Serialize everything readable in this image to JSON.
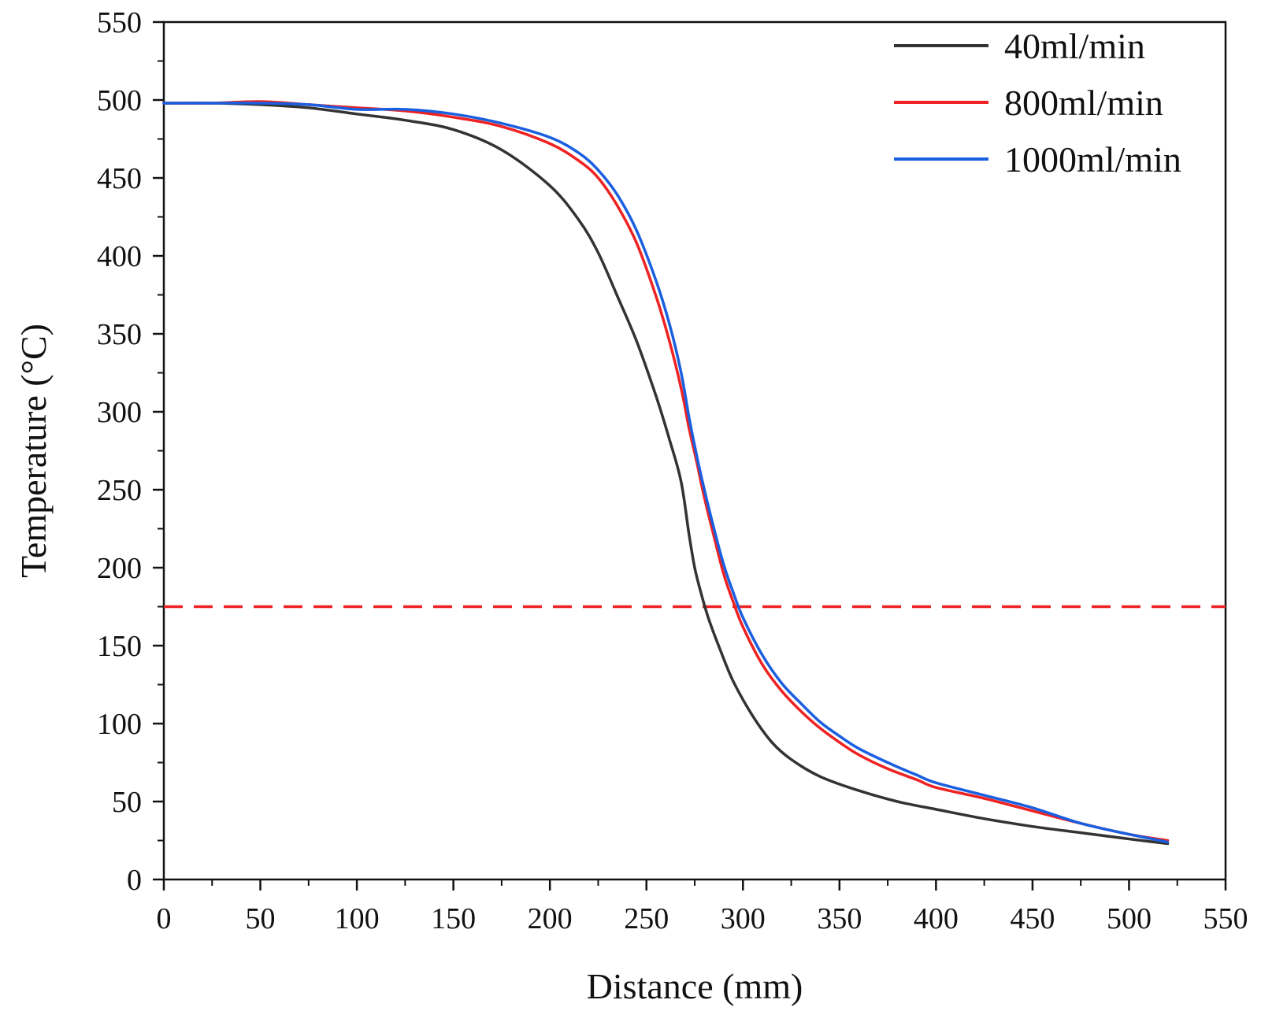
{
  "chart_data": {
    "type": "line",
    "title": "",
    "xlabel": "Distance (mm)",
    "ylabel": "Temperature (°C)",
    "xlim": [
      0,
      550
    ],
    "ylim": [
      0,
      550
    ],
    "x_major_ticks": [
      0,
      50,
      100,
      150,
      200,
      250,
      300,
      350,
      400,
      450,
      500,
      550
    ],
    "x_tick_labels": [
      "0",
      "50",
      "100",
      "150",
      "200",
      "250",
      "300",
      "350",
      "400",
      "450",
      "500",
      "550"
    ],
    "y_major_ticks": [
      0,
      50,
      100,
      150,
      200,
      250,
      300,
      350,
      400,
      450,
      500,
      550
    ],
    "y_tick_labels": [
      "0",
      "50",
      "100",
      "150",
      "200",
      "250",
      "300",
      "350",
      "400",
      "450",
      "500",
      "550"
    ],
    "grid": false,
    "legend_position": "top-right",
    "series": [
      {
        "name": "40ml/min",
        "color": "#333333",
        "points": [
          [
            0,
            498
          ],
          [
            25,
            498
          ],
          [
            50,
            497
          ],
          [
            75,
            495
          ],
          [
            100,
            491
          ],
          [
            125,
            487
          ],
          [
            150,
            481
          ],
          [
            175,
            468
          ],
          [
            200,
            445
          ],
          [
            215,
            423
          ],
          [
            225,
            402
          ],
          [
            235,
            374
          ],
          [
            245,
            345
          ],
          [
            255,
            310
          ],
          [
            262,
            282
          ],
          [
            268,
            255
          ],
          [
            272,
            222
          ],
          [
            275,
            200
          ],
          [
            278,
            185
          ],
          [
            282,
            168
          ],
          [
            288,
            148
          ],
          [
            295,
            127
          ],
          [
            305,
            105
          ],
          [
            315,
            88
          ],
          [
            325,
            77
          ],
          [
            340,
            66
          ],
          [
            360,
            57
          ],
          [
            380,
            50
          ],
          [
            400,
            45
          ],
          [
            425,
            39
          ],
          [
            450,
            34
          ],
          [
            475,
            30
          ],
          [
            500,
            26
          ],
          [
            520,
            23
          ]
        ]
      },
      {
        "name": "800ml/min",
        "color": "#ee2222",
        "points": [
          [
            0,
            498
          ],
          [
            25,
            498
          ],
          [
            50,
            499
          ],
          [
            75,
            497
          ],
          [
            100,
            495
          ],
          [
            125,
            493
          ],
          [
            150,
            489
          ],
          [
            175,
            483
          ],
          [
            200,
            472
          ],
          [
            215,
            461
          ],
          [
            225,
            450
          ],
          [
            235,
            432
          ],
          [
            245,
            408
          ],
          [
            255,
            374
          ],
          [
            262,
            345
          ],
          [
            268,
            315
          ],
          [
            272,
            290
          ],
          [
            276,
            268
          ],
          [
            280,
            245
          ],
          [
            285,
            220
          ],
          [
            290,
            196
          ],
          [
            295,
            178
          ],
          [
            300,
            162
          ],
          [
            310,
            138
          ],
          [
            320,
            121
          ],
          [
            330,
            108
          ],
          [
            340,
            97
          ],
          [
            350,
            88
          ],
          [
            360,
            80
          ],
          [
            375,
            71
          ],
          [
            390,
            64
          ],
          [
            400,
            59
          ],
          [
            425,
            52
          ],
          [
            450,
            44
          ],
          [
            475,
            36
          ],
          [
            500,
            29
          ],
          [
            520,
            25
          ]
        ]
      },
      {
        "name": "1000ml/min",
        "color": "#1a5fe0",
        "points": [
          [
            0,
            498
          ],
          [
            25,
            498
          ],
          [
            50,
            498
          ],
          [
            75,
            497
          ],
          [
            100,
            494
          ],
          [
            125,
            494
          ],
          [
            150,
            491
          ],
          [
            175,
            485
          ],
          [
            200,
            476
          ],
          [
            215,
            466
          ],
          [
            225,
            455
          ],
          [
            235,
            439
          ],
          [
            245,
            416
          ],
          [
            255,
            384
          ],
          [
            262,
            356
          ],
          [
            268,
            325
          ],
          [
            272,
            297
          ],
          [
            276,
            272
          ],
          [
            280,
            250
          ],
          [
            285,
            225
          ],
          [
            290,
            202
          ],
          [
            295,
            184
          ],
          [
            300,
            168
          ],
          [
            310,
            144
          ],
          [
            320,
            126
          ],
          [
            330,
            113
          ],
          [
            340,
            101
          ],
          [
            350,
            92
          ],
          [
            360,
            84
          ],
          [
            375,
            75
          ],
          [
            390,
            67
          ],
          [
            400,
            62
          ],
          [
            425,
            54
          ],
          [
            450,
            46
          ],
          [
            475,
            36
          ],
          [
            500,
            29
          ],
          [
            520,
            24
          ]
        ]
      }
    ],
    "reference_line": {
      "orientation": "horizontal",
      "y": 175,
      "color": "#ee2222",
      "style": "dashed"
    }
  }
}
